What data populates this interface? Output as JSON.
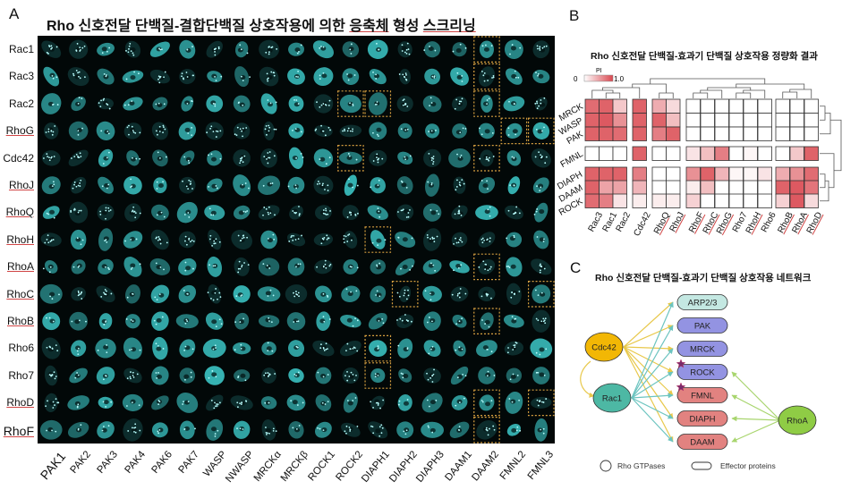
{
  "panel_a": {
    "letter": "A",
    "title_parts": [
      "Rho 신호전달 단백질-결합단백질 상호작용에 의한 ",
      "응축체",
      " 형성 ",
      "스크리닝"
    ],
    "rows": [
      "Rac1",
      "Rac3",
      "Rac2",
      "RhoG",
      "Cdc42",
      "RhoJ",
      "RhoQ",
      "RhoH",
      "RhoA",
      "RhoC",
      "RhoB",
      "Rho6",
      "Rho7",
      "RhoD",
      "RhoF"
    ],
    "underlined_rows": [
      "RhoG",
      "RhoJ",
      "RhoQ",
      "RhoH",
      "RhoA",
      "RhoC",
      "RhoB",
      "RhoD",
      "RhoF"
    ],
    "columns": [
      "PAK1",
      "PAK2",
      "PAK3",
      "PAK4",
      "PAK6",
      "PAK7",
      "WASP",
      "NWASP",
      "MRCKα",
      "MRCKβ",
      "ROCK1",
      "ROCK2",
      "DIAPH1",
      "DIAPH2",
      "DIAPH3",
      "DAAM1",
      "DAAM2",
      "FMNL2",
      "FMNL3"
    ],
    "highlighted_cells": [
      [
        "Rac1",
        "DAAM2"
      ],
      [
        "Rac3",
        "DAAM2"
      ],
      [
        "Rac2",
        "ROCK2"
      ],
      [
        "Rac2",
        "DIAPH1"
      ],
      [
        "Rac2",
        "DAAM2"
      ],
      [
        "RhoG",
        "FMNL2"
      ],
      [
        "RhoG",
        "FMNL3"
      ],
      [
        "Cdc42",
        "ROCK2"
      ],
      [
        "Cdc42",
        "DAAM2"
      ],
      [
        "RhoH",
        "DIAPH1"
      ],
      [
        "RhoA",
        "DAAM2"
      ],
      [
        "RhoC",
        "DIAPH2"
      ],
      [
        "RhoC",
        "FMNL3"
      ],
      [
        "RhoB",
        "DAAM2"
      ],
      [
        "Rho6",
        "DIAPH1"
      ],
      [
        "Rho7",
        "DIAPH1"
      ],
      [
        "RhoD",
        "DAAM2"
      ],
      [
        "RhoD",
        "FMNL3"
      ],
      [
        "RhoF",
        "DAAM2"
      ]
    ],
    "cell_color": "#3fd0d0",
    "highlight_color": "#d8a040"
  },
  "panel_b": {
    "letter": "B",
    "title": "Rho 신호전달 단백질-효과기 단백질 상호작용 정량화 결과",
    "legend": {
      "label": "PI",
      "min_label": "0",
      "max_label": "1.0",
      "min": 0,
      "max": 1.0,
      "color_low": "#ffffff",
      "color_high": "#d9474f"
    },
    "chart_data": {
      "type": "heatmap",
      "title": "Rho 신호전달 단백질-효과기 단백질 상호작용 정량화 결과",
      "rows": [
        "MRCK",
        "WASP",
        "PAK",
        "FMNL",
        "DIAPH",
        "DAAM",
        "ROCK"
      ],
      "row_groups": [
        [
          "MRCK",
          "WASP",
          "PAK"
        ],
        [
          "FMNL"
        ],
        [
          "DIAPH",
          "DAAM",
          "ROCK"
        ]
      ],
      "columns": [
        "Rac3",
        "Rac1",
        "Rac2",
        "Cdc42",
        "RhoQ",
        "RhoJ",
        "RhoF",
        "RhoC",
        "RhoG",
        "Rho7",
        "RhoH",
        "Rho6",
        "RhoB",
        "RhoA",
        "RhoD"
      ],
      "column_groups": [
        [
          "Rac3",
          "Rac1",
          "Rac2"
        ],
        [
          "Cdc42"
        ],
        [
          "RhoQ",
          "RhoJ"
        ],
        [
          "RhoF",
          "RhoC",
          "RhoG",
          "Rho7",
          "RhoH",
          "Rho6"
        ],
        [
          "RhoB",
          "RhoA",
          "RhoD"
        ]
      ],
      "underlined_columns": [
        "RhoQ",
        "RhoJ",
        "RhoF",
        "RhoC",
        "RhoG",
        "RhoH",
        "RhoB",
        "RhoA",
        "RhoD"
      ],
      "values": [
        [
          0.8,
          0.85,
          0.3,
          0.85,
          0.45,
          0.2,
          0,
          0,
          0,
          0,
          0,
          0,
          0,
          0,
          0
        ],
        [
          0.85,
          0.9,
          0.6,
          0.85,
          0.85,
          0.35,
          0,
          0,
          0,
          0,
          0,
          0,
          0,
          0,
          0
        ],
        [
          0.85,
          0.85,
          0.8,
          0.85,
          0.7,
          0.85,
          0,
          0,
          0,
          0,
          0,
          0,
          0,
          0,
          0
        ],
        [
          0,
          0,
          0,
          0.85,
          0,
          0,
          0.15,
          0.35,
          0.7,
          0,
          0.05,
          0,
          0,
          0.3,
          0.85
        ],
        [
          0.85,
          0.85,
          0.85,
          0.7,
          0,
          0,
          0.6,
          0.85,
          0.4,
          0.05,
          0.05,
          0.15,
          0.45,
          0.6,
          0.8
        ],
        [
          0.85,
          0.5,
          0.5,
          0.4,
          0,
          0,
          0.1,
          0.35,
          0,
          0,
          0,
          0,
          0.85,
          0.9,
          0.75
        ],
        [
          0.8,
          0.7,
          0.15,
          0.1,
          0.1,
          0.1,
          0.25,
          0,
          0,
          0,
          0,
          0,
          0.25,
          0.9,
          0.2
        ]
      ],
      "value_label": "PI",
      "range": [
        0,
        1.0
      ],
      "dendrograms": [
        "top",
        "right"
      ]
    }
  },
  "panel_c": {
    "letter": "C",
    "title": "Rho 신호전달 단백질-효과기 단백질 상호작용 네트워크",
    "gtpases": [
      {
        "name": "Cdc42",
        "color": "#f2b705"
      },
      {
        "name": "Rac1",
        "color": "#4db8a4"
      },
      {
        "name": "RhoA",
        "color": "#8fcc45"
      }
    ],
    "effectors": [
      {
        "name": "ARP2/3",
        "color": "#c4e8e2",
        "starred": false
      },
      {
        "name": "PAK",
        "color": "#9393e2",
        "starred": false
      },
      {
        "name": "MRCK",
        "color": "#9393e2",
        "starred": false
      },
      {
        "name": "ROCK",
        "color": "#9393e2",
        "starred": true
      },
      {
        "name": "FMNL",
        "color": "#e28280",
        "starred": true
      },
      {
        "name": "DIAPH",
        "color": "#e28280",
        "starred": false
      },
      {
        "name": "DAAM",
        "color": "#e28280",
        "starred": false
      }
    ],
    "edges": {
      "Cdc42": [
        "ARP2/3",
        "PAK",
        "MRCK",
        "ROCK",
        "FMNL",
        "DIAPH",
        "DAAM",
        "Rac1"
      ],
      "Rac1": [
        "ARP2/3",
        "PAK",
        "MRCK",
        "ROCK",
        "FMNL",
        "DIAPH",
        "DAAM"
      ],
      "RhoA": [
        "ROCK",
        "FMNL",
        "DIAPH",
        "DAAM"
      ]
    },
    "edge_colors": {
      "Cdc42": "#e8c84a",
      "Rac1": "#6cc4c0",
      "RhoA": "#a8d56e"
    },
    "star_color": "#7a2a6a",
    "legend": {
      "gtpase_label": "Rho GTPases",
      "effector_label": "Effector proteins"
    }
  }
}
